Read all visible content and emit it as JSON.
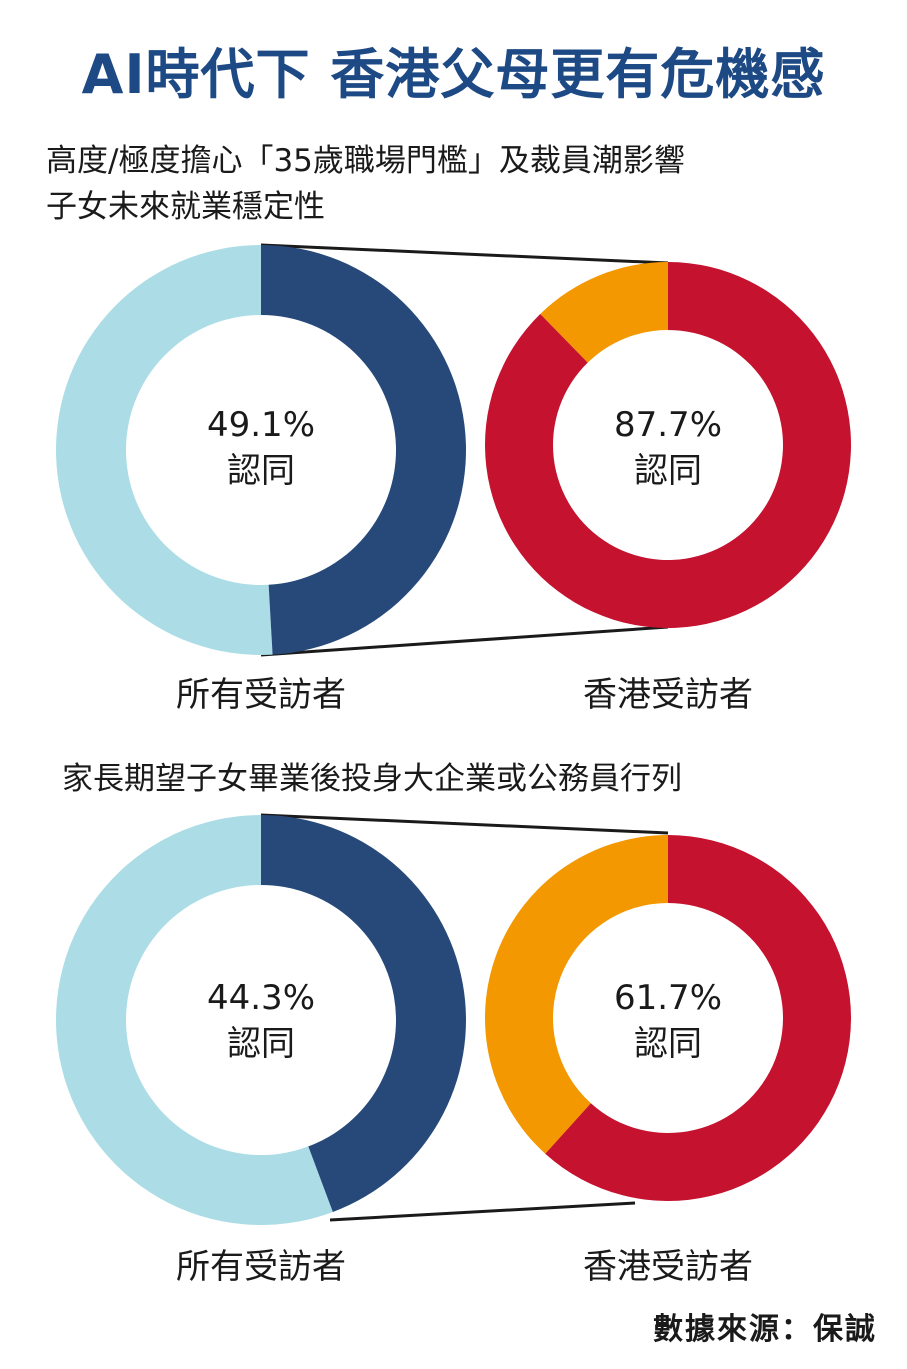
{
  "title": "AI時代下 香港父母更有危機感",
  "source": "數據來源：保誠",
  "colors": {
    "all_yes": "#27497a",
    "all_rest": "#acdde6",
    "hk_yes": "#c4122f",
    "hk_rest": "#f39800",
    "connector": "#1a1a1a"
  },
  "chart_data": [
    {
      "type": "pie",
      "title": "高度/極度擔心「35歲職場門檻」及裁員潮影響子女未來就業穩定性",
      "title_lines": [
        "高度/極度擔心「35歲職場門檻」及裁員潮影響",
        "子女未來就業穩定性"
      ],
      "series": [
        {
          "name": "所有受訪者",
          "value": 49.1,
          "value_label": "49.1%",
          "center_label": "認同"
        },
        {
          "name": "香港受訪者",
          "value": 87.7,
          "value_label": "87.7%",
          "center_label": "認同"
        }
      ]
    },
    {
      "type": "pie",
      "title": "家長期望子女畢業後投身大企業或公務員行列",
      "title_lines": [
        "家長期望子女畢業後投身大企業或公務員行列"
      ],
      "series": [
        {
          "name": "所有受訪者",
          "value": 44.3,
          "value_label": "44.3%",
          "center_label": "認同"
        },
        {
          "name": "香港受訪者",
          "value": 61.7,
          "value_label": "61.7%",
          "center_label": "認同"
        }
      ]
    }
  ]
}
